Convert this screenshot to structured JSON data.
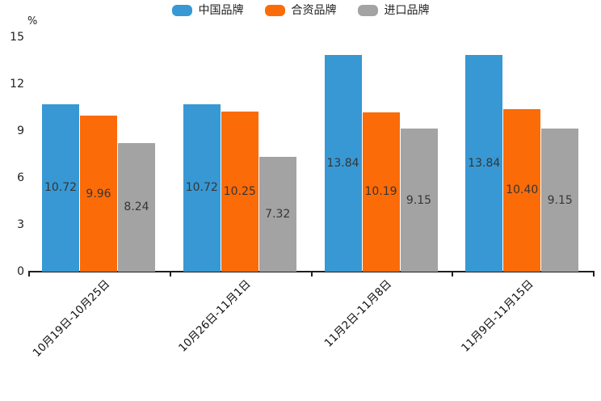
{
  "chart_data": {
    "type": "bar",
    "title": "",
    "unit_label": "%",
    "categories": [
      "10月19日-10月25日",
      "10月26日-11月1日",
      "11月2日-11月8日",
      "11月9日-11月15日"
    ],
    "series": [
      {
        "name": "中国品牌",
        "color": "#3798d4",
        "values": [
          10.72,
          10.72,
          13.84,
          13.84
        ]
      },
      {
        "name": "合资品牌",
        "color": "#fb6b08",
        "values": [
          9.96,
          10.25,
          10.19,
          10.4
        ]
      },
      {
        "name": "进口品牌",
        "color": "#a3a3a3",
        "values": [
          8.24,
          7.32,
          9.15,
          9.15
        ]
      }
    ],
    "value_labels": [
      [
        "10.72",
        "10.72",
        "13.84",
        "13.84"
      ],
      [
        "9.96",
        "10.25",
        "10.19",
        "10.40"
      ],
      [
        "8.24",
        "7.32",
        "9.15",
        "9.15"
      ]
    ],
    "y_axis": {
      "min": 0,
      "max": 15,
      "tick_interval": 3,
      "ticks": [
        "0",
        "3",
        "6",
        "9",
        "12",
        "15"
      ]
    },
    "x_axis_ticks": "category-boundaries",
    "legend_position": "top-center",
    "grid": false,
    "value_label_position": "inside-center",
    "axis_color": "#1f1f1f",
    "label_color": "#363636"
  }
}
